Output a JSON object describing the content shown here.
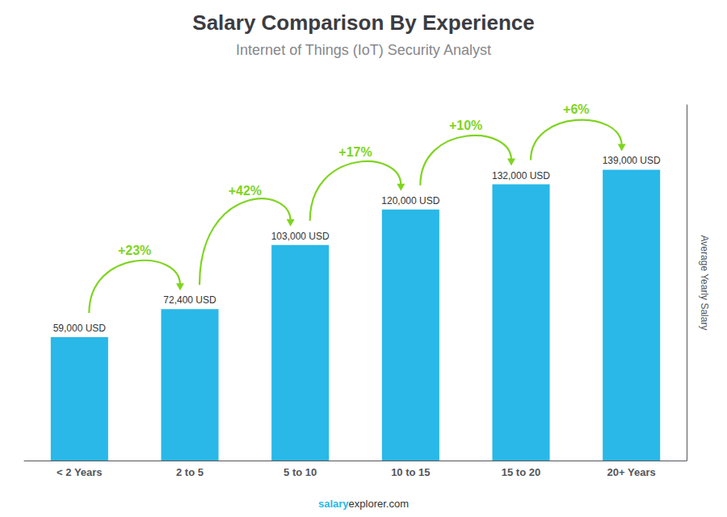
{
  "chart_data": {
    "type": "bar",
    "title": "Salary Comparison By Experience",
    "subtitle": "Internet of Things (IoT) Security Analyst",
    "categories": [
      "< 2 Years",
      "2 to 5",
      "5 to 10",
      "10 to 15",
      "15 to 20",
      "20+ Years"
    ],
    "values": [
      59000,
      72400,
      103000,
      120000,
      132000,
      139000
    ],
    "value_labels": [
      "59,000 USD",
      "72,400 USD",
      "103,000 USD",
      "120,000 USD",
      "132,000 USD",
      "139,000 USD"
    ],
    "data_labels": true,
    "color": "#29B8E8",
    "ylabel": "Average Yearly Salary",
    "ylim": [
      0,
      170000
    ],
    "grid": false,
    "tick_labels": "x",
    "annotations": [
      {
        "text": "+23%",
        "from": "< 2 Years",
        "to": "2 to 5",
        "color": "#7FD420"
      },
      {
        "text": "+42%",
        "from": "2 to 5",
        "to": "5 to 10",
        "color": "#7FD420"
      },
      {
        "text": "+17%",
        "from": "5 to 10",
        "to": "10 to 15",
        "color": "#7FD420"
      },
      {
        "text": "+10%",
        "from": "10 to 15",
        "to": "15 to 20",
        "color": "#7FD420"
      },
      {
        "text": "+6%",
        "from": "15 to 20",
        "to": "20+ Years",
        "color": "#7FD420"
      }
    ],
    "footer": [
      "salary",
      "explorer.com"
    ]
  }
}
